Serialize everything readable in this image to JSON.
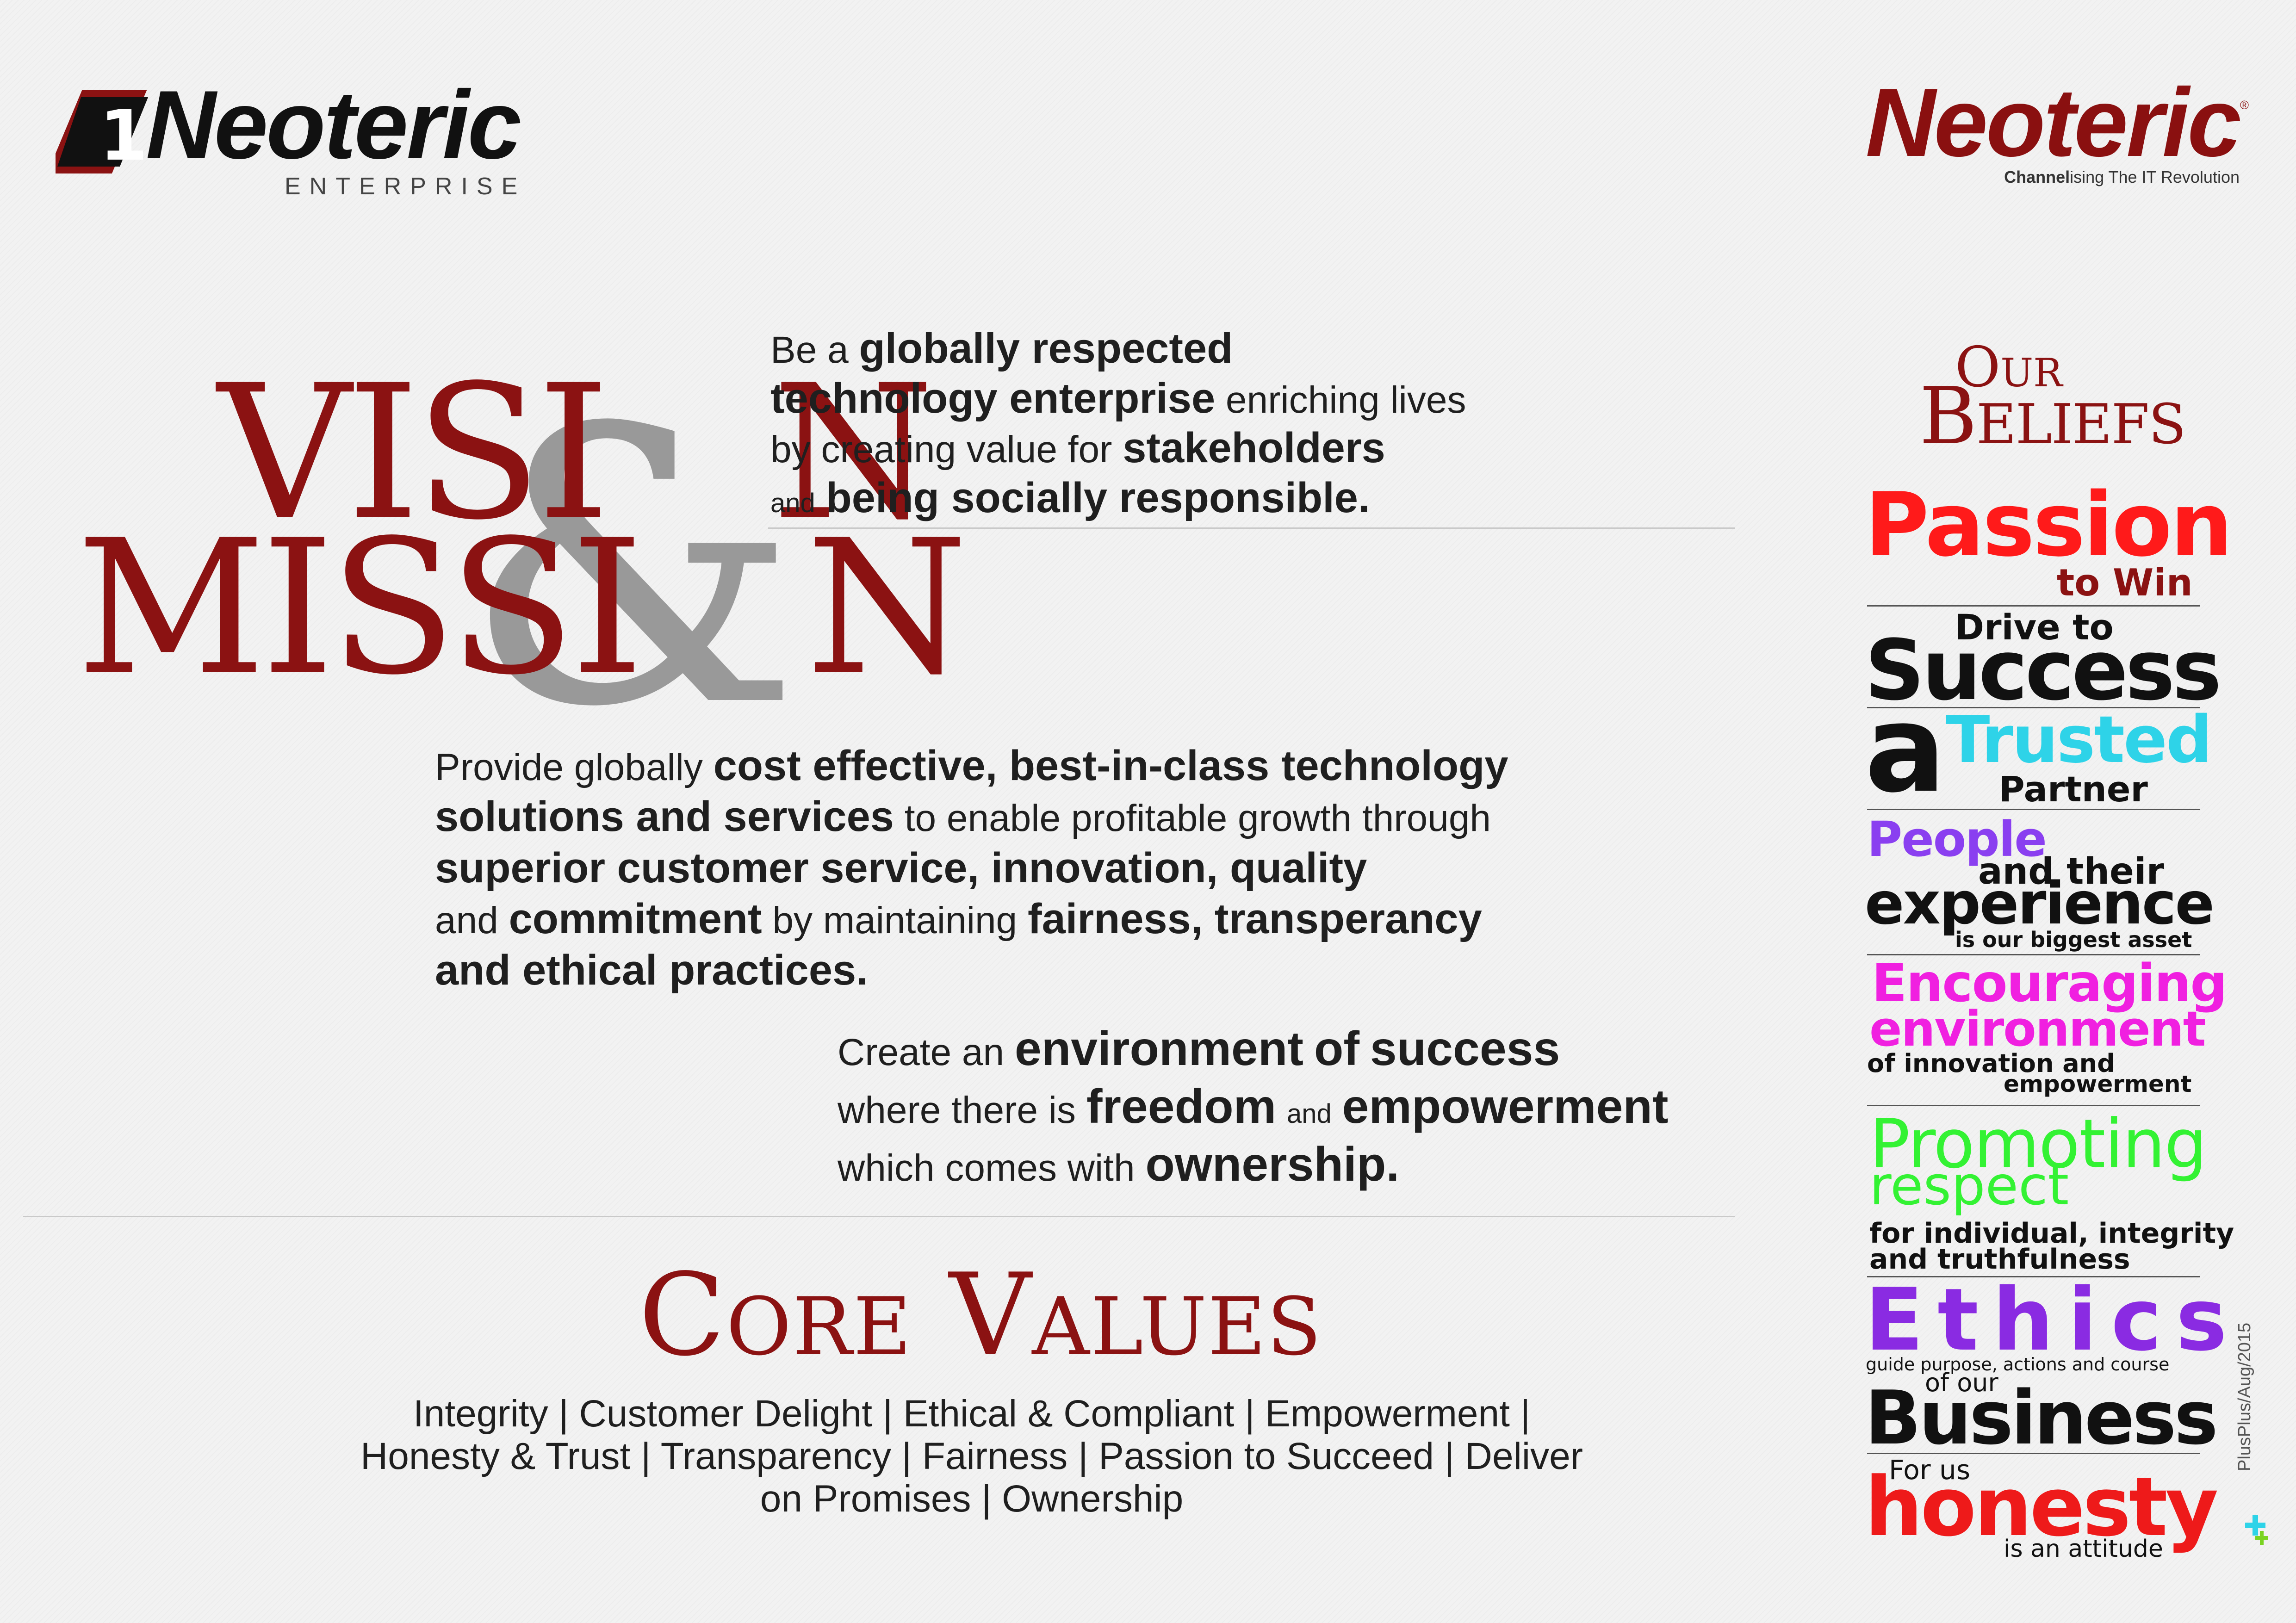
{
  "logos": {
    "left": {
      "name": "Neoteric",
      "sub": "ENTERPRISE"
    },
    "right": {
      "name": "Neoteric",
      "registered": "®",
      "tagline_bold": "Channel",
      "tagline_rest": "ising The IT Revolution"
    }
  },
  "headline": {
    "line1": "VISI",
    "line1_end": "N",
    "line2": "MISSI",
    "line2_end": "N",
    "ampersand": "&"
  },
  "vision": {
    "l1a": "Be a",
    "l1b": "globally respected",
    "l2a": "technology enterprise",
    "l2b": "enriching lives",
    "l3a": "by creating value for",
    "l3b": "stakeholders",
    "l4a": "and",
    "l4b": "being socially responsible."
  },
  "mission": {
    "l1a": "Provide globally",
    "l1b": "cost effective, best-in-class technology",
    "l2a": "solutions and services",
    "l2b": "to enable profitable growth through",
    "l3": "superior customer service, innovation, quality",
    "l4a": "and",
    "l4b": "commitment",
    "l4c": "by maintaining",
    "l4d": "fairness, transperancy",
    "l5": "and ethical practices."
  },
  "goal": {
    "l1a": "Create an",
    "l1b": "environment",
    "l1c": "of",
    "l1d": "success",
    "l2a": "where there is",
    "l2b": "freedom",
    "l2c": "and",
    "l2d": "empowerment",
    "l3a": "which comes with",
    "l3b": "ownership."
  },
  "core_values": {
    "title": "Core Values",
    "line1": "Integrity | Customer Delight | Ethical & Compliant | Empowerment |",
    "line2": "Honesty & Trust | Transparency | Fairness | Passion to Succeed | Deliver",
    "line3": "on Promises | Ownership"
  },
  "beliefs": {
    "our": "Our",
    "title": "Beliefs",
    "passion": "Passion",
    "to_win": "to Win",
    "drive_to": "Drive to",
    "success": "Success",
    "a": "a",
    "trusted": "Trusted",
    "partner": "Partner",
    "people": "People",
    "and_their": "and their",
    "experience": "experience",
    "biggest_asset": "is our biggest asset",
    "encouraging": "Encouraging",
    "environment": "environment",
    "of_innovation": "of innovation and",
    "empowerment": "empowerment",
    "promoting": "Promoting",
    "respect": "respect",
    "for_individual": "for individual, integrity",
    "truthfulness": "and truthfulness",
    "ethics": "Ethics",
    "guide": "guide purpose, actions and course",
    "of_our": "of our",
    "business": "Business",
    "for_us": "For us",
    "honesty": "honesty",
    "attitude": "is an attitude"
  },
  "credit": "PlusPlus/Aug/2015",
  "colors": {
    "brand_red": "#8b1212",
    "passion_red": "#ff1a1a",
    "cyan": "#2ed3e8",
    "purple": "#8a3ff0",
    "magenta": "#f020e0",
    "green": "#33f233",
    "ethics_purple": "#8a2be2",
    "honesty_red": "#ee1a1a"
  }
}
